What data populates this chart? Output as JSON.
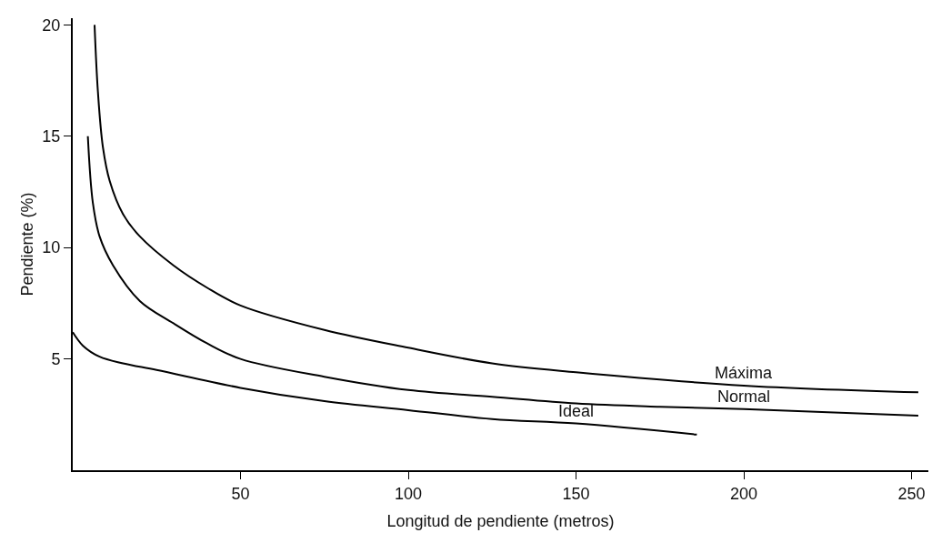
{
  "chart_data": {
    "type": "line",
    "xlabel": "Longitud de pendiente (metros)",
    "ylabel": "Pendiente (%)",
    "xlim": [
      0,
      255
    ],
    "ylim": [
      0,
      20.3
    ],
    "xticks": [
      50,
      100,
      150,
      200,
      250
    ],
    "yticks": [
      5,
      10,
      15,
      20
    ],
    "legend": false,
    "marker": "none",
    "line_style": "solid",
    "series": [
      {
        "name": "Máxima",
        "color": "#000000",
        "x": [
          6.5,
          7.5,
          9,
          11,
          15,
          20,
          30,
          40,
          50,
          75,
          100,
          125,
          150,
          200,
          252
        ],
        "values": [
          20,
          17,
          14.5,
          13,
          11.5,
          10.5,
          9.2,
          8.2,
          7.4,
          6.3,
          5.5,
          4.8,
          4.4,
          3.8,
          3.5
        ]
      },
      {
        "name": "Normal",
        "color": "#000000",
        "x": [
          4.5,
          6,
          8,
          12,
          20,
          30,
          40,
          50,
          75,
          100,
          125,
          150,
          175,
          200,
          252
        ],
        "values": [
          15,
          12,
          10.5,
          9.2,
          7.6,
          6.6,
          5.7,
          5.0,
          4.2,
          3.6,
          3.3,
          3.0,
          2.85,
          2.75,
          2.45
        ]
      },
      {
        "name": "Ideal",
        "color": "#000000",
        "x": [
          0,
          3,
          8,
          15,
          25,
          50,
          75,
          100,
          125,
          150,
          186
        ],
        "values": [
          6.2,
          5.6,
          5.1,
          4.8,
          4.5,
          3.7,
          3.1,
          2.7,
          2.3,
          2.1,
          1.6
        ]
      }
    ]
  }
}
